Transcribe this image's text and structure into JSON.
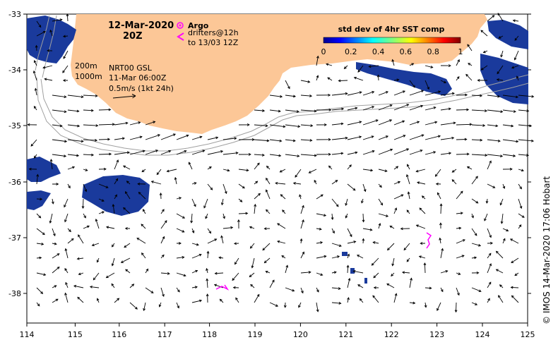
{
  "map": {
    "date_label": "12-Mar-2020",
    "time_label": "20Z",
    "lon_ticks": [
      "114",
      "115",
      "116",
      "117",
      "118",
      "119",
      "120",
      "121",
      "122",
      "123",
      "124",
      "125"
    ],
    "lat_ticks": [
      "-33",
      "-34",
      "-35",
      "-36",
      "-37",
      "-38"
    ],
    "land_color": "#fcc797",
    "arrow_color": "#000000",
    "contour_color": "#a0a0a0",
    "drifter_color": "#ff00ff",
    "sst_patch_color": "#1a3a9c"
  },
  "legend": {
    "argo_label": "Argo",
    "drifters_label": "drifters@12h",
    "drifters_range": "to 13/03 12Z"
  },
  "colorbar": {
    "title": "std dev of 4hr SST comp",
    "ticks": [
      "0",
      "0.2",
      "0.4",
      "0.6",
      "0.8",
      "1"
    ]
  },
  "info": {
    "depth_200": "200m",
    "depth_1000": "1000m",
    "product": "NRT00 GSL",
    "analysis_time": "11-Mar 06:00Z",
    "scale_label": "0.5m/s (1kt 24h)"
  },
  "credit": "© IMOS 14-Mar-2020 17:06 Hobart"
}
